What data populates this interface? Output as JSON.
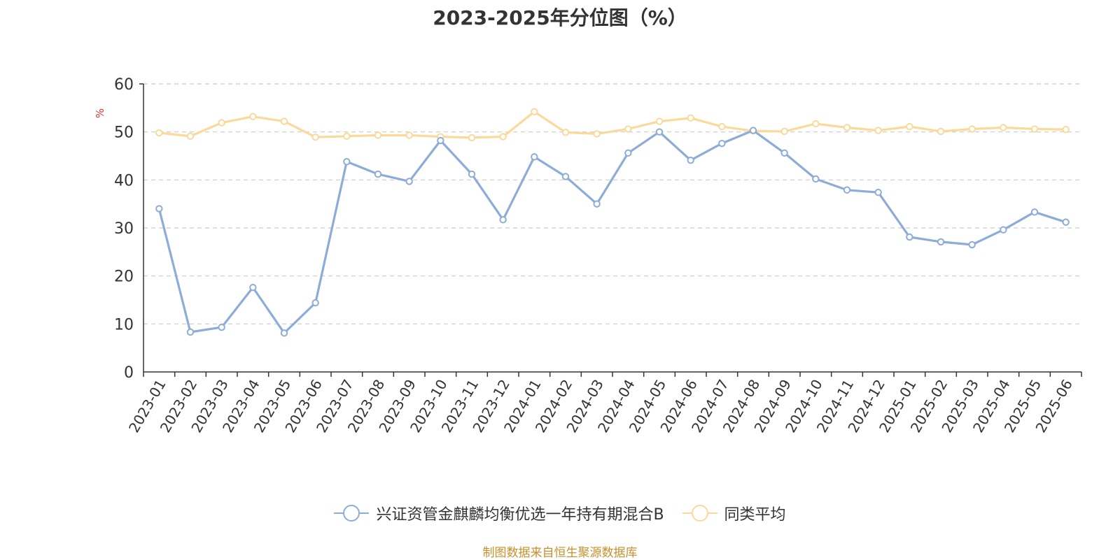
{
  "chart_data": {
    "type": "line",
    "title": "2023-2025年分位图（%）",
    "ylabel": "%",
    "xlabel": "",
    "ylim": [
      0,
      60
    ],
    "yticks": [
      "0",
      "10",
      "20",
      "30",
      "40",
      "50",
      "60"
    ],
    "grid": true,
    "legend_position": "bottom",
    "categories": [
      "2023-01",
      "2023-02",
      "2023-03",
      "2023-04",
      "2023-05",
      "2023-06",
      "2023-07",
      "2023-08",
      "2023-09",
      "2023-10",
      "2023-11",
      "2023-12",
      "2024-01",
      "2024-02",
      "2024-03",
      "2024-04",
      "2024-05",
      "2024-06",
      "2024-07",
      "2024-08",
      "2024-09",
      "2024-10",
      "2024-11",
      "2024-12",
      "2025-01",
      "2025-02",
      "2025-03",
      "2025-04",
      "2025-05",
      "2025-06"
    ],
    "series": [
      {
        "name": "兴证资管金麒麟均衡优选一年持有期混合B",
        "color": "#8eacd8",
        "values": [
          34.0,
          8.3,
          9.3,
          17.6,
          8.1,
          14.4,
          43.8,
          41.2,
          39.7,
          48.2,
          41.2,
          31.7,
          44.8,
          40.7,
          35.0,
          45.6,
          50.0,
          44.1,
          47.6,
          50.3,
          45.6,
          40.2,
          37.9,
          37.4,
          28.1,
          27.1,
          26.5,
          29.6,
          33.3,
          31.2
        ]
      },
      {
        "name": "同类平均",
        "color": "#fbd99a",
        "values": [
          49.8,
          49.1,
          51.9,
          53.2,
          52.2,
          48.9,
          49.1,
          49.3,
          49.3,
          49.0,
          48.8,
          49.0,
          54.2,
          49.9,
          49.6,
          50.6,
          52.2,
          52.9,
          51.1,
          50.2,
          50.1,
          51.7,
          50.9,
          50.3,
          51.1,
          50.1,
          50.6,
          50.9,
          50.6,
          50.5
        ]
      }
    ]
  },
  "source_note": "制图数据来自恒生聚源数据库"
}
